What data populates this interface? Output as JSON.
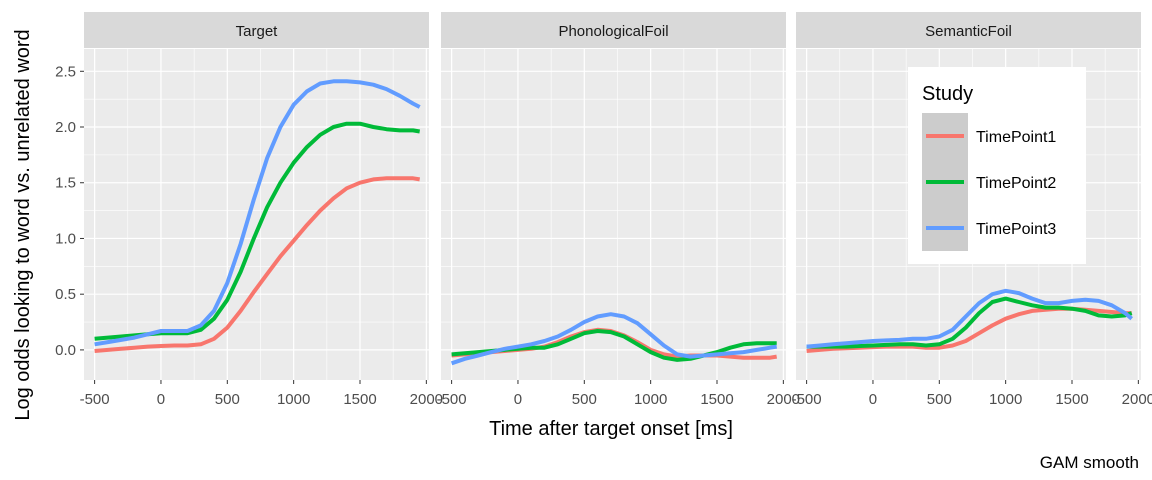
{
  "chart_data": {
    "type": "line",
    "title": "",
    "xlabel": "Time after target onset [ms]",
    "ylabel": "Log odds looking to word vs. unrelated word",
    "caption": "GAM smooth",
    "xlim": [
      -580,
      2020
    ],
    "ylim": [
      -0.27,
      2.7
    ],
    "x_ticks": [
      -500,
      0,
      500,
      1000,
      1500,
      2000
    ],
    "y_ticks": [
      0.0,
      0.5,
      1.0,
      1.5,
      2.0,
      2.5
    ],
    "y_tick_labels": [
      "0.0",
      "0.5",
      "1.0",
      "1.5",
      "2.0",
      "2.5"
    ],
    "grid": true,
    "legend": {
      "title": "Study",
      "placement": "inside-top-right (third panel)",
      "entries": [
        {
          "label": "TimePoint1",
          "color": "#F8766D"
        },
        {
          "label": "TimePoint2",
          "color": "#00BA38"
        },
        {
          "label": "TimePoint3",
          "color": "#619CFF"
        }
      ]
    },
    "panels": [
      {
        "strip": "Target",
        "series": [
          {
            "name": "TimePoint1",
            "color": "#F8766D",
            "x": [
              -500,
              -400,
              -300,
              -200,
              -100,
              0,
              100,
              200,
              300,
              400,
              500,
              600,
              700,
              800,
              900,
              1000,
              1100,
              1200,
              1300,
              1400,
              1500,
              1600,
              1700,
              1800,
              1900,
              1950
            ],
            "y": [
              -0.01,
              0.0,
              0.01,
              0.02,
              0.03,
              0.035,
              0.04,
              0.04,
              0.05,
              0.1,
              0.2,
              0.35,
              0.52,
              0.68,
              0.84,
              0.98,
              1.12,
              1.25,
              1.36,
              1.45,
              1.5,
              1.53,
              1.54,
              1.54,
              1.54,
              1.53
            ]
          },
          {
            "name": "TimePoint2",
            "color": "#00BA38",
            "x": [
              -500,
              -400,
              -300,
              -200,
              -100,
              0,
              100,
              200,
              300,
              400,
              500,
              600,
              700,
              800,
              900,
              1000,
              1100,
              1200,
              1300,
              1400,
              1500,
              1600,
              1700,
              1800,
              1900,
              1950
            ],
            "y": [
              0.1,
              0.11,
              0.12,
              0.13,
              0.14,
              0.15,
              0.15,
              0.15,
              0.18,
              0.28,
              0.45,
              0.7,
              1.0,
              1.28,
              1.5,
              1.68,
              1.82,
              1.93,
              2.0,
              2.03,
              2.03,
              2.0,
              1.98,
              1.97,
              1.97,
              1.96
            ]
          },
          {
            "name": "TimePoint3",
            "color": "#619CFF",
            "x": [
              -500,
              -400,
              -300,
              -200,
              -100,
              0,
              100,
              200,
              300,
              400,
              500,
              600,
              700,
              800,
              900,
              1000,
              1100,
              1200,
              1300,
              1400,
              1500,
              1600,
              1700,
              1800,
              1900,
              1950
            ],
            "y": [
              0.05,
              0.07,
              0.09,
              0.11,
              0.14,
              0.17,
              0.17,
              0.17,
              0.22,
              0.35,
              0.6,
              0.95,
              1.35,
              1.72,
              2.0,
              2.2,
              2.32,
              2.39,
              2.41,
              2.41,
              2.4,
              2.38,
              2.34,
              2.28,
              2.21,
              2.18
            ]
          }
        ]
      },
      {
        "strip": "PhonologicalFoil",
        "series": [
          {
            "name": "TimePoint1",
            "color": "#F8766D",
            "x": [
              -500,
              -400,
              -300,
              -200,
              -100,
              0,
              100,
              200,
              300,
              400,
              500,
              600,
              700,
              800,
              900,
              1000,
              1100,
              1200,
              1300,
              1400,
              1500,
              1600,
              1700,
              1800,
              1900,
              1950
            ],
            "y": [
              -0.05,
              -0.04,
              -0.03,
              -0.02,
              -0.01,
              0.0,
              0.01,
              0.03,
              0.07,
              0.12,
              0.16,
              0.18,
              0.17,
              0.13,
              0.07,
              0.0,
              -0.04,
              -0.06,
              -0.05,
              -0.05,
              -0.05,
              -0.06,
              -0.07,
              -0.07,
              -0.07,
              -0.06
            ]
          },
          {
            "name": "TimePoint2",
            "color": "#00BA38",
            "x": [
              -500,
              -400,
              -300,
              -200,
              -100,
              0,
              100,
              200,
              300,
              400,
              500,
              600,
              700,
              800,
              900,
              1000,
              1100,
              1200,
              1300,
              1400,
              1500,
              1600,
              1700,
              1800,
              1900,
              1950
            ],
            "y": [
              -0.04,
              -0.03,
              -0.02,
              -0.01,
              0.0,
              0.01,
              0.02,
              0.02,
              0.05,
              0.1,
              0.15,
              0.17,
              0.16,
              0.12,
              0.05,
              -0.02,
              -0.07,
              -0.09,
              -0.08,
              -0.05,
              -0.02,
              0.02,
              0.05,
              0.06,
              0.06,
              0.06
            ]
          },
          {
            "name": "TimePoint3",
            "color": "#619CFF",
            "x": [
              -500,
              -400,
              -300,
              -200,
              -100,
              0,
              100,
              200,
              300,
              400,
              500,
              600,
              700,
              800,
              900,
              1000,
              1100,
              1200,
              1300,
              1400,
              1500,
              1600,
              1700,
              1800,
              1900,
              1950
            ],
            "y": [
              -0.12,
              -0.08,
              -0.05,
              -0.02,
              0.01,
              0.03,
              0.05,
              0.08,
              0.12,
              0.18,
              0.25,
              0.3,
              0.32,
              0.3,
              0.24,
              0.14,
              0.04,
              -0.04,
              -0.06,
              -0.05,
              -0.04,
              -0.03,
              -0.02,
              0.0,
              0.02,
              0.03
            ]
          }
        ]
      },
      {
        "strip": "SemanticFoil",
        "series": [
          {
            "name": "TimePoint1",
            "color": "#F8766D",
            "x": [
              -500,
              -400,
              -300,
              -200,
              -100,
              0,
              100,
              200,
              300,
              400,
              500,
              600,
              700,
              800,
              900,
              1000,
              1100,
              1200,
              1300,
              1400,
              1500,
              1600,
              1700,
              1800,
              1900,
              1950
            ],
            "y": [
              -0.01,
              0.0,
              0.01,
              0.015,
              0.02,
              0.025,
              0.03,
              0.03,
              0.03,
              0.02,
              0.02,
              0.04,
              0.08,
              0.15,
              0.22,
              0.28,
              0.32,
              0.35,
              0.36,
              0.37,
              0.37,
              0.36,
              0.35,
              0.34,
              0.33,
              0.33
            ]
          },
          {
            "name": "TimePoint2",
            "color": "#00BA38",
            "x": [
              -500,
              -400,
              -300,
              -200,
              -100,
              0,
              100,
              200,
              300,
              400,
              500,
              600,
              700,
              800,
              900,
              1000,
              1100,
              1200,
              1300,
              1400,
              1500,
              1600,
              1700,
              1800,
              1900,
              1950
            ],
            "y": [
              0.03,
              0.03,
              0.03,
              0.03,
              0.035,
              0.04,
              0.045,
              0.05,
              0.05,
              0.04,
              0.05,
              0.1,
              0.2,
              0.33,
              0.43,
              0.46,
              0.43,
              0.4,
              0.38,
              0.38,
              0.37,
              0.35,
              0.31,
              0.3,
              0.31,
              0.33
            ]
          },
          {
            "name": "TimePoint3",
            "color": "#619CFF",
            "x": [
              -500,
              -400,
              -300,
              -200,
              -100,
              0,
              100,
              200,
              300,
              400,
              500,
              600,
              700,
              800,
              900,
              1000,
              1100,
              1200,
              1300,
              1400,
              1500,
              1600,
              1700,
              1800,
              1900,
              1950
            ],
            "y": [
              0.03,
              0.04,
              0.05,
              0.06,
              0.07,
              0.08,
              0.085,
              0.09,
              0.1,
              0.1,
              0.12,
              0.18,
              0.3,
              0.42,
              0.5,
              0.53,
              0.51,
              0.46,
              0.42,
              0.42,
              0.44,
              0.45,
              0.44,
              0.4,
              0.33,
              0.28
            ]
          }
        ]
      }
    ]
  }
}
